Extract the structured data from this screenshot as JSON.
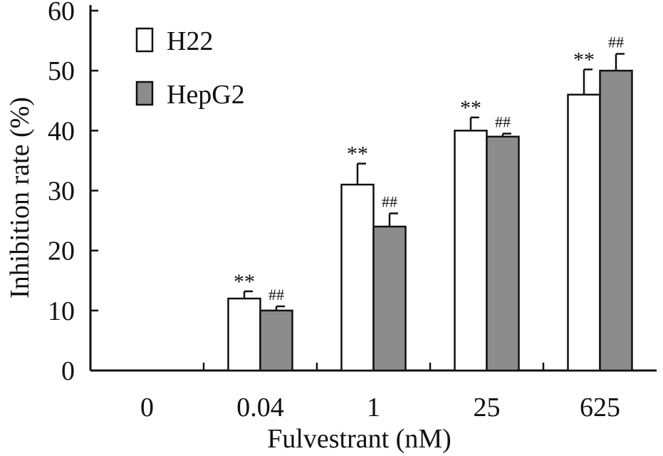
{
  "chart_data": {
    "type": "bar",
    "title": "",
    "xlabel": "Fulvestrant (nM)",
    "ylabel": "Inhibition rate (%)",
    "ylim": [
      0,
      60
    ],
    "yticks": [
      0,
      10,
      20,
      30,
      40,
      50,
      60
    ],
    "categories": [
      "0",
      "0.04",
      "1",
      "25",
      "625"
    ],
    "legend_position": "top-left",
    "grid": false,
    "series": [
      {
        "name": "H22",
        "color": "#ffffff",
        "values": [
          0,
          12,
          31,
          40,
          46
        ],
        "errors": [
          0,
          1.2,
          3.5,
          2.2,
          4.2
        ],
        "annotations": [
          "",
          "**",
          "**",
          "**",
          "**"
        ]
      },
      {
        "name": "HepG2",
        "color": "#8c8c8c",
        "values": [
          0,
          10,
          24,
          39,
          50
        ],
        "errors": [
          0,
          0.7,
          2.2,
          0.5,
          2.8
        ],
        "annotations": [
          "",
          "##",
          "##",
          "##",
          "##"
        ]
      }
    ]
  }
}
